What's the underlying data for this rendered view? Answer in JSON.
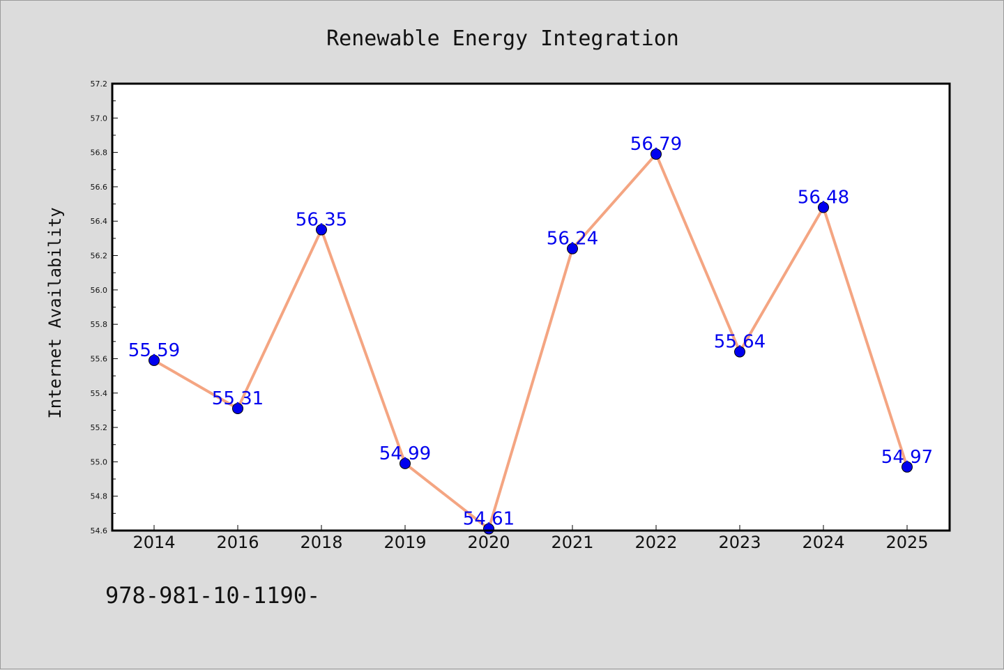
{
  "footer": {
    "text": "978-981-10-1190-"
  },
  "chart_data": {
    "type": "line",
    "title": "Renewable Energy Integration",
    "xlabel": "",
    "ylabel": "Internet Availability",
    "categories": [
      "2014",
      "2016",
      "2018",
      "2019",
      "2020",
      "2021",
      "2022",
      "2023",
      "2024",
      "2025"
    ],
    "series": [
      {
        "values": [
          55.59,
          55.31,
          56.35,
          54.99,
          54.61,
          56.24,
          56.79,
          55.64,
          56.48,
          54.97
        ],
        "labels": [
          "55.59",
          "55.31",
          "56.35",
          "54.99",
          "54.61",
          "56.24",
          "56.79",
          "55.64",
          "56.48",
          "54.97"
        ]
      }
    ],
    "ylim": [
      54.6,
      57.2
    ],
    "yticks": [
      "54.6",
      "54.8",
      "55.0",
      "55.2",
      "55.4",
      "55.6",
      "55.8",
      "56.0",
      "56.2",
      "56.4",
      "56.6",
      "56.8",
      "57.0",
      "57.2"
    ],
    "grid": false,
    "colors": {
      "line": "#f4a582",
      "marker": "#0000ee",
      "label": "#0000ee",
      "background": "#dcdcdc",
      "plot": "#ffffff"
    }
  }
}
